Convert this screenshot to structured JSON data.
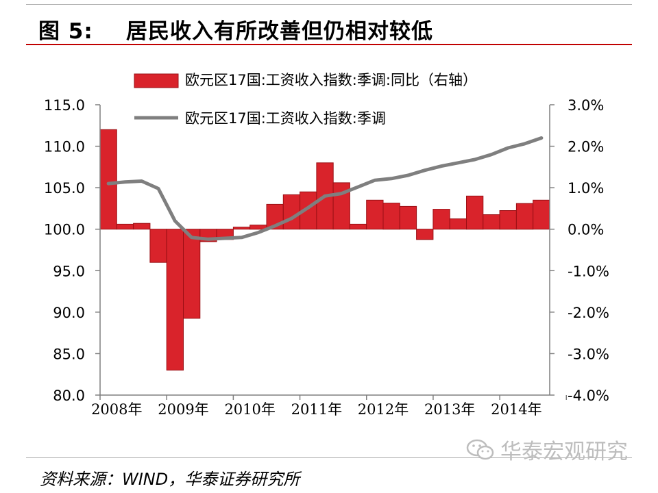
{
  "figure": {
    "label": "图 5:",
    "title": "居民收入有所改善但仍相对较低"
  },
  "source": "资料来源：WIND，华泰证券研究所",
  "watermark": {
    "text": "华泰宏观研究"
  },
  "colors": {
    "bar": "#d9232b",
    "bar_edge": "#9a0f14",
    "line": "#7f7f7f",
    "rule": "#c00000"
  },
  "chart_data": {
    "type": "bar+line",
    "legend": [
      "欧元区17国:工资收入指数:季调:同比（右轴）",
      "欧元区17国:工资收入指数:季调"
    ],
    "legend_position": "top-center",
    "categories": [
      "2008Q1",
      "2008Q2",
      "2008Q3",
      "2008Q4",
      "2009Q1",
      "2009Q2",
      "2009Q3",
      "2009Q4",
      "2010Q1",
      "2010Q2",
      "2010Q3",
      "2010Q4",
      "2011Q1",
      "2011Q2",
      "2011Q3",
      "2011Q4",
      "2012Q1",
      "2012Q2",
      "2012Q3",
      "2012Q4",
      "2013Q1",
      "2013Q2",
      "2013Q3",
      "2013Q4",
      "2014Q1",
      "2014Q2",
      "2014Q3"
    ],
    "x_tick_labels": [
      "2008年",
      "2009年",
      "2010年",
      "2011年",
      "2012年",
      "2013年",
      "2014年"
    ],
    "series": [
      {
        "name": "欧元区17国:工资收入指数:季调:同比（右轴）",
        "axis": "right",
        "kind": "bar",
        "values": [
          2.4,
          0.12,
          0.14,
          -0.8,
          -3.4,
          -2.15,
          -0.3,
          -0.25,
          0.05,
          0.1,
          0.6,
          0.83,
          0.9,
          1.6,
          1.12,
          0.12,
          0.7,
          0.63,
          0.55,
          -0.25,
          0.48,
          0.25,
          0.8,
          0.35,
          0.45,
          0.62,
          0.7
        ]
      },
      {
        "name": "欧元区17国:工资收入指数:季调",
        "axis": "left",
        "kind": "line",
        "values": [
          105.5,
          105.7,
          105.8,
          104.9,
          101.0,
          99.0,
          98.8,
          98.9,
          99.0,
          99.6,
          100.4,
          101.3,
          102.6,
          104.0,
          104.3,
          105.1,
          105.9,
          106.1,
          106.5,
          107.1,
          107.6,
          108.0,
          108.4,
          109.0,
          109.8,
          110.3,
          111.0
        ]
      }
    ],
    "y_left": {
      "range": [
        80,
        115
      ],
      "ticks": [
        "80.0",
        "85.0",
        "90.0",
        "95.0",
        "100.0",
        "105.0",
        "110.0",
        "115.0"
      ]
    },
    "y_right": {
      "range": [
        -4,
        3
      ],
      "ticks": [
        "-4.0%",
        "-3.0%",
        "-2.0%",
        "-1.0%",
        "0.0%",
        "1.0%",
        "2.0%",
        "3.0%"
      ]
    },
    "grid": false
  }
}
